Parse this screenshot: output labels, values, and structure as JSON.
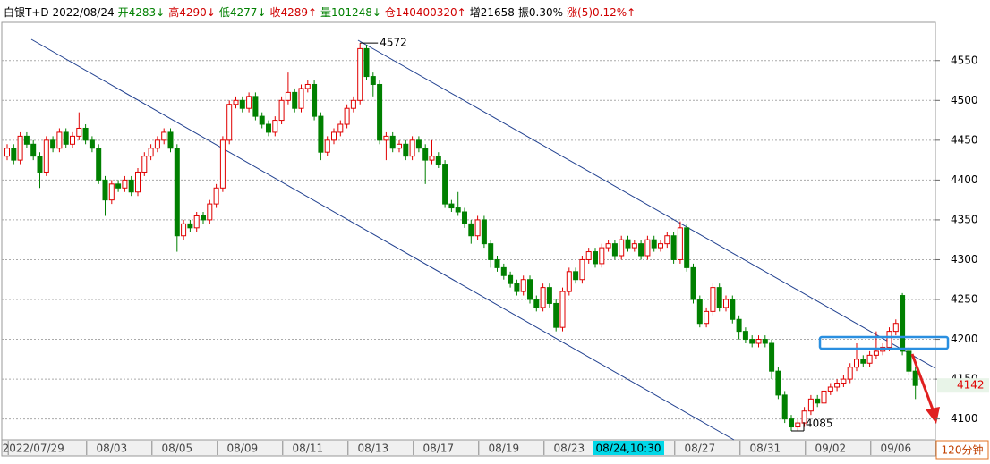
{
  "chart_data": {
    "type": "candlestick",
    "header": [
      {
        "text": "白银T+D 2022/08/24",
        "color": "#000000"
      },
      {
        "text": "开4283↓",
        "color": "#008000"
      },
      {
        "text": "高4290↓",
        "color": "#d00000"
      },
      {
        "text": "低4277↓",
        "color": "#008000"
      },
      {
        "text": "收4289↑",
        "color": "#d00000"
      },
      {
        "text": "量101248↓",
        "color": "#008000"
      },
      {
        "text": "仓140400320↑",
        "color": "#d00000"
      },
      {
        "text": "增21658",
        "color": "#000000"
      },
      {
        "text": "振0.30%",
        "color": "#000000"
      },
      {
        "text": "涨(5)0.12%↑",
        "color": "#d00000"
      }
    ],
    "categories": [
      null,
      null,
      null,
      null,
      "2022/07/29",
      null,
      null,
      null,
      null,
      null,
      null,
      null,
      null,
      null,
      null,
      null,
      "08/03",
      null,
      null,
      null,
      null,
      null,
      null,
      null,
      null,
      null,
      "08/05",
      null,
      null,
      null,
      null,
      null,
      null,
      null,
      null,
      null,
      "08/09",
      null,
      null,
      null,
      null,
      null,
      null,
      null,
      null,
      null,
      "08/11",
      null,
      null,
      null,
      null,
      null,
      null,
      null,
      null,
      null,
      "08/13",
      null,
      null,
      null,
      null,
      null,
      null,
      null,
      null,
      null,
      "08/17",
      null,
      null,
      null,
      null,
      null,
      null,
      null,
      null,
      null,
      "08/19",
      null,
      null,
      null,
      null,
      null,
      null,
      null,
      null,
      null,
      "08/23",
      null,
      null,
      null,
      null,
      null,
      null,
      null,
      null,
      null,
      null,
      null,
      null,
      null,
      null,
      null,
      null,
      null,
      null,
      null,
      "08/27",
      null,
      null,
      null,
      null,
      null,
      null,
      null,
      null,
      null,
      "08/31",
      null,
      null,
      null,
      null,
      null,
      null,
      null,
      null,
      null,
      "09/02",
      null,
      null,
      null,
      null,
      null,
      null,
      null,
      null,
      null,
      "09/06",
      null,
      null,
      null
    ],
    "cursor_label": "08/24,10:30",
    "period": "120分钟",
    "open": [
      4430,
      4440,
      4425,
      4455,
      4445,
      4430,
      4410,
      4450,
      4440,
      4460,
      4445,
      4455,
      4465,
      4450,
      4440,
      4400,
      4375,
      4395,
      4390,
      4400,
      4385,
      4410,
      4430,
      4440,
      4450,
      4460,
      4440,
      4330,
      4345,
      4340,
      4355,
      4350,
      4370,
      4390,
      4450,
      4495,
      4500,
      4490,
      4505,
      4480,
      4470,
      4460,
      4475,
      4500,
      4510,
      4490,
      4515,
      4520,
      4480,
      4435,
      4450,
      4460,
      4470,
      4490,
      4500,
      4565,
      4530,
      4520,
      4450,
      4455,
      4440,
      4445,
      4430,
      4450,
      4440,
      4425,
      4430,
      4420,
      4370,
      4365,
      4360,
      4345,
      4330,
      4350,
      4320,
      4300,
      4290,
      4280,
      4270,
      4260,
      4275,
      4250,
      4240,
      4265,
      4245,
      4215,
      4260,
      4285,
      4275,
      4300,
      4310,
      4295,
      4315,
      4320,
      4305,
      4325,
      4315,
      4320,
      4305,
      4325,
      4315,
      4320,
      4330,
      4300,
      4340,
      4290,
      4250,
      4220,
      4235,
      4265,
      4240,
      4250,
      4225,
      4210,
      4200,
      4195,
      4200,
      4195,
      4160,
      4130,
      4100,
      4090,
      4095,
      4110,
      4125,
      4120,
      4135,
      4140,
      4145,
      4150,
      4165,
      4175,
      4170,
      4180,
      4185,
      4190,
      4210,
      4255,
      4185,
      4160
    ],
    "high": [
      4445,
      4445,
      4460,
      4460,
      4450,
      4435,
      4455,
      4455,
      4465,
      4465,
      4460,
      4485,
      4470,
      4455,
      4445,
      4405,
      4400,
      4400,
      4405,
      4405,
      4415,
      4435,
      4445,
      4455,
      4465,
      4465,
      4445,
      4350,
      4350,
      4360,
      4360,
      4375,
      4395,
      4455,
      4500,
      4505,
      4505,
      4510,
      4510,
      4485,
      4475,
      4480,
      4505,
      4535,
      4515,
      4520,
      4525,
      4525,
      4485,
      4455,
      4465,
      4475,
      4495,
      4505,
      4572,
      4570,
      4535,
      4525,
      4460,
      4460,
      4450,
      4450,
      4455,
      4455,
      4445,
      4450,
      4435,
      4425,
      4375,
      4385,
      4365,
      4350,
      4355,
      4355,
      4325,
      4305,
      4295,
      4285,
      4275,
      4280,
      4280,
      4255,
      4270,
      4270,
      4250,
      4265,
      4290,
      4290,
      4305,
      4315,
      4315,
      4320,
      4325,
      4325,
      4330,
      4330,
      4325,
      4325,
      4330,
      4330,
      4325,
      4335,
      4335,
      4348,
      4345,
      4295,
      4255,
      4240,
      4270,
      4270,
      4255,
      4255,
      4230,
      4215,
      4205,
      4205,
      4205,
      4200,
      4165,
      4135,
      4105,
      4100,
      4115,
      4130,
      4130,
      4140,
      4145,
      4150,
      4155,
      4170,
      4195,
      4180,
      4185,
      4210,
      4195,
      4215,
      4225,
      4258,
      4190,
      4165
    ],
    "low": [
      4425,
      4420,
      4420,
      4440,
      4425,
      4390,
      4405,
      4435,
      4435,
      4440,
      4440,
      4450,
      4445,
      4435,
      4395,
      4355,
      4370,
      4385,
      4385,
      4380,
      4380,
      4405,
      4425,
      4435,
      4445,
      4435,
      4310,
      4325,
      4335,
      4335,
      4345,
      4345,
      4365,
      4385,
      4445,
      4490,
      4485,
      4485,
      4475,
      4465,
      4455,
      4455,
      4470,
      4495,
      4485,
      4485,
      4510,
      4475,
      4425,
      4430,
      4445,
      4455,
      4465,
      4485,
      4495,
      4525,
      4505,
      4445,
      4425,
      4435,
      4435,
      4425,
      4425,
      4435,
      4395,
      4420,
      4415,
      4365,
      4360,
      4355,
      4340,
      4320,
      4325,
      4315,
      4290,
      4285,
      4275,
      4265,
      4255,
      4255,
      4245,
      4235,
      4235,
      4240,
      4210,
      4210,
      4255,
      4270,
      4270,
      4295,
      4290,
      4290,
      4310,
      4300,
      4300,
      4310,
      4310,
      4300,
      4300,
      4310,
      4310,
      4315,
      4295,
      4295,
      4285,
      4245,
      4215,
      4215,
      4230,
      4235,
      4235,
      4220,
      4200,
      4195,
      4190,
      4190,
      4190,
      4150,
      4125,
      4095,
      4085,
      4085,
      4090,
      4105,
      4115,
      4115,
      4130,
      4135,
      4140,
      4145,
      4160,
      4165,
      4165,
      4175,
      4180,
      4185,
      4205,
      4180,
      4155,
      4125
    ],
    "close": [
      4440,
      4425,
      4455,
      4445,
      4430,
      4410,
      4450,
      4440,
      4460,
      4445,
      4455,
      4465,
      4450,
      4440,
      4400,
      4375,
      4395,
      4390,
      4400,
      4385,
      4410,
      4430,
      4440,
      4450,
      4460,
      4440,
      4330,
      4345,
      4340,
      4355,
      4350,
      4370,
      4390,
      4450,
      4495,
      4500,
      4490,
      4505,
      4480,
      4470,
      4460,
      4475,
      4500,
      4510,
      4490,
      4515,
      4520,
      4480,
      4435,
      4450,
      4460,
      4470,
      4490,
      4500,
      4565,
      4530,
      4520,
      4450,
      4455,
      4440,
      4445,
      4430,
      4450,
      4440,
      4425,
      4430,
      4420,
      4370,
      4365,
      4360,
      4345,
      4330,
      4350,
      4320,
      4300,
      4290,
      4280,
      4270,
      4260,
      4275,
      4250,
      4240,
      4265,
      4245,
      4215,
      4260,
      4285,
      4275,
      4300,
      4310,
      4295,
      4315,
      4320,
      4305,
      4325,
      4315,
      4320,
      4305,
      4325,
      4315,
      4320,
      4330,
      4300,
      4340,
      4290,
      4250,
      4220,
      4235,
      4265,
      4240,
      4250,
      4225,
      4210,
      4200,
      4195,
      4200,
      4195,
      4160,
      4130,
      4100,
      4090,
      4095,
      4110,
      4125,
      4120,
      4135,
      4140,
      4145,
      4150,
      4165,
      4175,
      4170,
      4180,
      4185,
      4190,
      4210,
      4220,
      4185,
      4160,
      4142
    ],
    "up_color": "#e00000",
    "down_color": "#008000",
    "max_label": 4572,
    "min_label": 4085,
    "last_price": 4142,
    "ylim": [
      4076,
      4598
    ],
    "yticks": [
      4100,
      4150,
      4200,
      4250,
      4300,
      4350,
      4400,
      4450,
      4500,
      4550
    ],
    "grid": true
  }
}
